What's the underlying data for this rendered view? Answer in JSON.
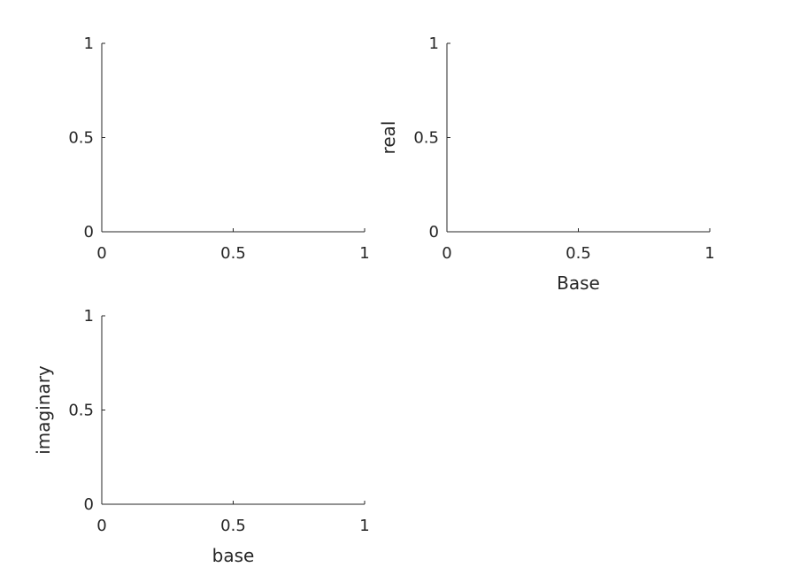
{
  "chart_data": [
    {
      "type": "line",
      "title": "",
      "xlabel": "",
      "ylabel": "",
      "xlim": [
        0,
        1
      ],
      "ylim": [
        0,
        1
      ],
      "xticks": [
        0,
        0.5,
        1
      ],
      "yticks": [
        0,
        0.5,
        1
      ],
      "xtick_labels": [
        "0",
        "0.5",
        "1"
      ],
      "ytick_labels": [
        "0",
        "0.5",
        "1"
      ],
      "grid": false,
      "series": []
    },
    {
      "type": "line",
      "title": "",
      "xlabel": "Base",
      "ylabel": "real",
      "xlim": [
        0,
        1
      ],
      "ylim": [
        0,
        1
      ],
      "xticks": [
        0,
        0.5,
        1
      ],
      "yticks": [
        0,
        0.5,
        1
      ],
      "xtick_labels": [
        "0",
        "0.5",
        "1"
      ],
      "ytick_labels": [
        "0",
        "0.5",
        "1"
      ],
      "grid": false,
      "series": []
    },
    {
      "type": "line",
      "title": "",
      "xlabel": "base",
      "ylabel": "imaginary",
      "xlim": [
        0,
        1
      ],
      "ylim": [
        0,
        1
      ],
      "xticks": [
        0,
        0.5,
        1
      ],
      "yticks": [
        0,
        0.5,
        1
      ],
      "xtick_labels": [
        "0",
        "0.5",
        "1"
      ],
      "ytick_labels": [
        "0",
        "0.5",
        "1"
      ],
      "grid": false,
      "series": []
    }
  ]
}
